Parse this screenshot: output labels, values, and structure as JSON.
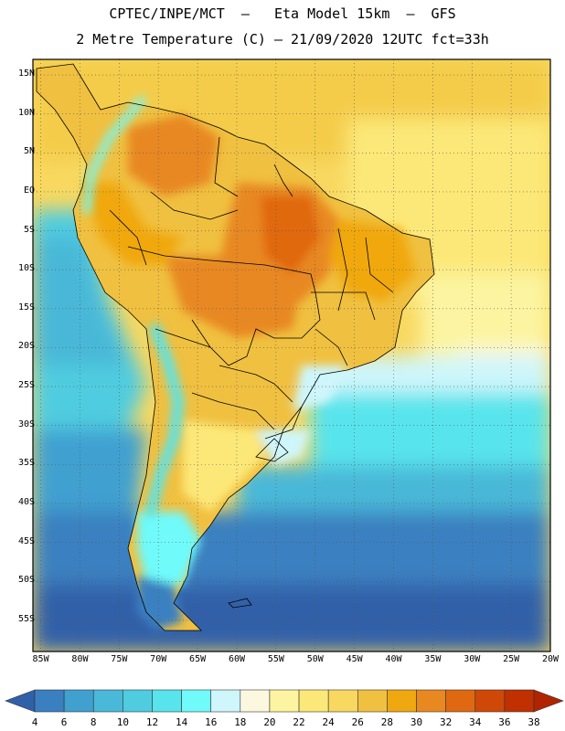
{
  "header": {
    "line1": "CPTEC/INPE/MCT  –   Eta Model 15km  –  GFS",
    "line2": "2 Metre Temperature (C) – 21/09/2020 12UTC fct=33h"
  },
  "map": {
    "lon_range": [
      -86,
      -20
    ],
    "lat_range": [
      -59,
      17
    ],
    "lat_labels": [
      {
        "lat": 15,
        "text": "15N"
      },
      {
        "lat": 10,
        "text": "10N"
      },
      {
        "lat": 5,
        "text": "5N"
      },
      {
        "lat": 0,
        "text": "EQ"
      },
      {
        "lat": -5,
        "text": "5S"
      },
      {
        "lat": -10,
        "text": "10S"
      },
      {
        "lat": -15,
        "text": "15S"
      },
      {
        "lat": -20,
        "text": "20S"
      },
      {
        "lat": -25,
        "text": "25S"
      },
      {
        "lat": -30,
        "text": "30S"
      },
      {
        "lat": -35,
        "text": "35S"
      },
      {
        "lat": -40,
        "text": "40S"
      },
      {
        "lat": -45,
        "text": "45S"
      },
      {
        "lat": -50,
        "text": "50S"
      },
      {
        "lat": -55,
        "text": "55S"
      }
    ],
    "lon_labels": [
      {
        "lon": -85,
        "text": "85W"
      },
      {
        "lon": -80,
        "text": "80W"
      },
      {
        "lon": -75,
        "text": "75W"
      },
      {
        "lon": -70,
        "text": "70W"
      },
      {
        "lon": -65,
        "text": "65W"
      },
      {
        "lon": -60,
        "text": "60W"
      },
      {
        "lon": -55,
        "text": "55W"
      },
      {
        "lon": -50,
        "text": "50W"
      },
      {
        "lon": -45,
        "text": "45W"
      },
      {
        "lon": -40,
        "text": "40W"
      },
      {
        "lon": -35,
        "text": "35W"
      },
      {
        "lon": -30,
        "text": "30W"
      },
      {
        "lon": -25,
        "text": "25W"
      },
      {
        "lon": -20,
        "text": "20W"
      }
    ]
  },
  "colorbar": {
    "levels": [
      "4",
      "6",
      "8",
      "10",
      "12",
      "14",
      "16",
      "18",
      "20",
      "22",
      "24",
      "26",
      "28",
      "30",
      "32",
      "34",
      "36",
      "38"
    ],
    "colors": [
      "#3060a8",
      "#3a80c0",
      "#40a0d0",
      "#4ab8d8",
      "#50cce0",
      "#58e4ec",
      "#70fafa",
      "#cef6fb",
      "#fcf8e0",
      "#fcf4a0",
      "#fce878",
      "#f8d860",
      "#f0c040",
      "#f0a810",
      "#e88820",
      "#e06810",
      "#d04808",
      "#c03000",
      "#b02400"
    ]
  }
}
